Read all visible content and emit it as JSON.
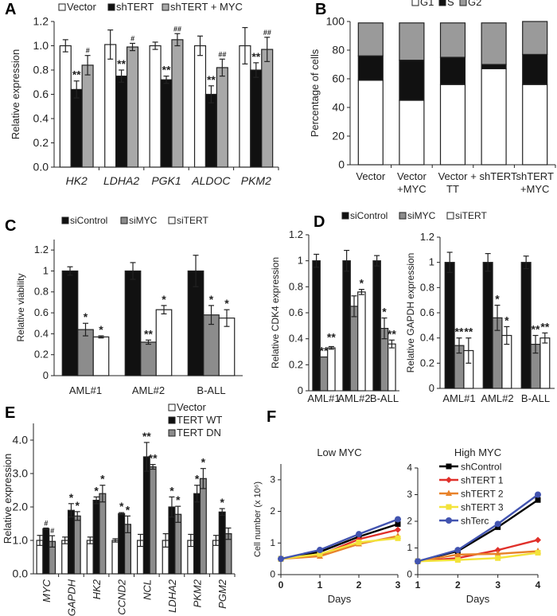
{
  "chart_data": [
    {
      "panel": "A",
      "type": "bar",
      "ylabel": "Relative expression",
      "categories": [
        "HK2",
        "LDHA2",
        "PGK1",
        "ALDOC",
        "PKM2"
      ],
      "italic_categories": true,
      "ylim": [
        0,
        1.2
      ],
      "yticks": [
        "0.0",
        "0.2",
        "0.4",
        "0.6",
        "0.8",
        "1.0",
        "1.2"
      ],
      "series": [
        {
          "name": "Vector",
          "color": "#ffffff",
          "values": [
            1.0,
            1.01,
            1.0,
            1.0,
            1.0
          ],
          "errors": [
            0.05,
            0.12,
            0.03,
            0.08,
            0.15
          ],
          "annotations": [
            "",
            "",
            "",
            "",
            ""
          ]
        },
        {
          "name": "shTERT",
          "color": "#111111",
          "values": [
            0.64,
            0.75,
            0.72,
            0.6,
            0.8
          ],
          "errors": [
            0.07,
            0.05,
            0.03,
            0.07,
            0.06
          ],
          "annotations": [
            "**",
            "**",
            "**",
            "**",
            "**"
          ]
        },
        {
          "name": "shTERT + MYC",
          "color": "#a8a8a8",
          "values": [
            0.84,
            0.99,
            1.05,
            0.82,
            0.97
          ],
          "errors": [
            0.08,
            0.03,
            0.05,
            0.07,
            0.1
          ],
          "annotations": [
            "#",
            "#",
            "##",
            "##",
            "##"
          ]
        }
      ]
    },
    {
      "panel": "B",
      "type": "stacked-bar",
      "ylabel": "Percentage of cells",
      "categories": [
        [
          "Vector"
        ],
        [
          "Vector",
          "+MYC"
        ],
        [
          "Vector",
          "TT"
        ],
        [
          "+ shTERT"
        ],
        [
          "shTERT",
          "+MYC"
        ]
      ],
      "ylim": [
        0,
        100
      ],
      "yticks": [
        "0",
        "20",
        "40",
        "60",
        "80",
        "100"
      ],
      "series": [
        {
          "name": "G1",
          "color": "#ffffff",
          "values": [
            59,
            45,
            56,
            67,
            56
          ]
        },
        {
          "name": "S",
          "color": "#111111",
          "values": [
            17,
            28,
            19,
            3,
            21
          ]
        },
        {
          "name": "G2",
          "color": "#9a9a9a",
          "values": [
            23,
            26,
            24,
            29,
            23
          ]
        }
      ]
    },
    {
      "panel": "C",
      "type": "bar",
      "ylabel": "Relative viability",
      "categories": [
        "AML#1",
        "AML#2",
        "B-ALL"
      ],
      "ylim": [
        0,
        1.3
      ],
      "yticks": [
        "0",
        "0.2",
        "0.4",
        "0.6",
        "0.8",
        "1",
        "1.2"
      ],
      "series": [
        {
          "name": "siControl",
          "color": "#111111",
          "values": [
            1,
            1,
            1
          ],
          "errors": [
            0.04,
            0.08,
            0.15
          ],
          "annotations": [
            "",
            "",
            ""
          ]
        },
        {
          "name": "siMYC",
          "color": "#8c8c8c",
          "values": [
            0.44,
            0.32,
            0.58
          ],
          "errors": [
            0.06,
            0.02,
            0.09
          ],
          "annotations": [
            "*",
            "**",
            "*"
          ]
        },
        {
          "name": "siTERT",
          "color": "#ffffff",
          "values": [
            0.37,
            0.63,
            0.55
          ],
          "errors": [
            0.01,
            0.04,
            0.08
          ],
          "annotations": [
            "*",
            "*",
            "*"
          ]
        }
      ]
    },
    {
      "panel": "D",
      "type": "bar",
      "ylabel": "Relative CDK4 expression",
      "categories": [
        "AML#1",
        "AML#2",
        "B-ALL"
      ],
      "ylim": [
        0,
        1.2
      ],
      "yticks": [
        "0",
        "0.2",
        "0.4",
        "0.6",
        "0.8",
        "1",
        "1.2"
      ],
      "series": [
        {
          "name": "siControl",
          "color": "#111111",
          "values": [
            1,
            1,
            1
          ],
          "errors": [
            0.05,
            0.08,
            0.04
          ],
          "annotations": [
            "",
            "",
            ""
          ]
        },
        {
          "name": "siMYC",
          "color": "#8c8c8c",
          "values": [
            0.26,
            0.65,
            0.48
          ],
          "errors": [
            0,
            0.08,
            0.08
          ],
          "annotations": [
            "**",
            "",
            "*"
          ]
        },
        {
          "name": "siTERT",
          "color": "#ffffff",
          "values": [
            0.33,
            0.76,
            0.36
          ],
          "errors": [
            0.01,
            0.02,
            0.03
          ],
          "annotations": [
            "**",
            "*",
            "**"
          ]
        }
      ]
    },
    {
      "panel": "",
      "type": "bar",
      "ylabel": "Relative GAPDH expression",
      "categories": [
        "AML#1",
        "AML#2",
        "B-ALL"
      ],
      "ylim": [
        0,
        1.2
      ],
      "yticks": [
        "0",
        "0.2",
        "0.4",
        "0.6",
        "0.8",
        "1",
        "1.2"
      ],
      "series": [
        {
          "name": "siControl",
          "color": "#111111",
          "values": [
            1,
            1,
            1
          ],
          "errors": [
            0.08,
            0.07,
            0.05
          ],
          "annotations": [
            "",
            "",
            ""
          ]
        },
        {
          "name": "siMYC",
          "color": "#8c8c8c",
          "values": [
            0.34,
            0.56,
            0.35
          ],
          "errors": [
            0.06,
            0.1,
            0.07
          ],
          "annotations": [
            "**",
            "*",
            "**"
          ]
        },
        {
          "name": "siTERT",
          "color": "#ffffff",
          "values": [
            0.3,
            0.42,
            0.4
          ],
          "errors": [
            0.1,
            0.07,
            0.04
          ],
          "annotations": [
            "**",
            "*",
            "**"
          ]
        }
      ]
    },
    {
      "panel": "E",
      "type": "bar",
      "ylabel": "Relative expression",
      "categories": [
        "MYC",
        "GAPDH",
        "HK2",
        "CCND2",
        "NCL",
        "LDHA2",
        "PKM2",
        "PGM2"
      ],
      "italic_categories": true,
      "ylim": [
        0,
        4.5
      ],
      "yticks": [
        "0.0",
        "1.0",
        "2.0",
        "3.0",
        "4.0"
      ],
      "series": [
        {
          "name": "Vector",
          "color": "#ffffff",
          "values": [
            1,
            1,
            1,
            1,
            1,
            1,
            1,
            1
          ],
          "errors": [
            0.15,
            0.1,
            0.1,
            0.05,
            0.18,
            0.2,
            0.18,
            0.15
          ],
          "annotations": [
            "",
            "",
            "",
            "",
            "",
            "",
            "",
            ""
          ]
        },
        {
          "name": "TERT WT",
          "color": "#111111",
          "values": [
            1.35,
            1.9,
            2.2,
            1.8,
            3.5,
            2.0,
            2.4,
            1.85
          ],
          "errors": [
            0.02,
            0.2,
            0.1,
            0.03,
            0.43,
            0.3,
            0.25,
            0.1
          ],
          "annotations": [
            "#",
            "*",
            "*",
            "*",
            "**",
            "*",
            "*",
            "*"
          ]
        },
        {
          "name": "TERT DN",
          "color": "#8c8c8c",
          "values": [
            0.97,
            1.73,
            2.4,
            1.48,
            3.2,
            1.78,
            2.85,
            1.2
          ],
          "errors": [
            0.17,
            0.13,
            0.25,
            0.25,
            0.07,
            0.24,
            0.3,
            0.17
          ],
          "annotations": [
            "#",
            "*",
            "*",
            "*",
            "**",
            "*",
            "*",
            ""
          ]
        }
      ]
    },
    {
      "panel": "F",
      "type": "line",
      "title": "Low MYC",
      "ylabel": "Cell number (x 10⁶)",
      "xlabel": "Days",
      "x": [
        0,
        1,
        2,
        3
      ],
      "xticks": [
        "0",
        "1",
        "2",
        "3"
      ],
      "ylim": [
        0,
        3.5
      ],
      "yticks": [
        "0",
        "1",
        "2",
        "3"
      ],
      "series": [
        {
          "name": "shControl",
          "color": "#000000",
          "marker": "square",
          "values": [
            0.5,
            0.72,
            1.2,
            1.6
          ]
        },
        {
          "name": "shTERT 1",
          "color": "#e0302a",
          "marker": "diamond",
          "values": [
            0.5,
            0.62,
            1.12,
            1.42
          ]
        },
        {
          "name": "shTERT 2",
          "color": "#e8822a",
          "marker": "triangle",
          "values": [
            0.5,
            0.58,
            0.97,
            1.22
          ]
        },
        {
          "name": "shTERT 3",
          "color": "#f3e33a",
          "marker": "square",
          "values": [
            0.5,
            0.65,
            1.02,
            1.15
          ]
        },
        {
          "name": "shTerc",
          "color": "#4254b0",
          "marker": "circle",
          "values": [
            0.5,
            0.78,
            1.28,
            1.75
          ]
        }
      ]
    },
    {
      "panel": "",
      "type": "line",
      "title": "High MYC",
      "ylabel": "",
      "xlabel": "Days",
      "x": [
        1,
        2,
        3,
        4
      ],
      "xticks": [
        "1",
        "2",
        "3",
        "4"
      ],
      "ylim": [
        0,
        4
      ],
      "yticks": [
        "0",
        "1",
        "2",
        "3",
        "4"
      ],
      "series": [
        {
          "name": "shControl",
          "color": "#000000",
          "marker": "square",
          "values": [
            0.5,
            0.88,
            1.78,
            2.8
          ]
        },
        {
          "name": "shTERT 1",
          "color": "#e0302a",
          "marker": "diamond",
          "values": [
            0.5,
            0.62,
            0.92,
            1.3
          ]
        },
        {
          "name": "shTERT 2",
          "color": "#e8822a",
          "marker": "triangle",
          "values": [
            0.5,
            0.75,
            0.78,
            0.88
          ]
        },
        {
          "name": "shTERT 3",
          "color": "#f3e33a",
          "marker": "square",
          "values": [
            0.5,
            0.55,
            0.62,
            0.82
          ]
        },
        {
          "name": "shTerc",
          "color": "#4254b0",
          "marker": "circle",
          "values": [
            0.5,
            0.92,
            1.9,
            3.0
          ]
        }
      ]
    }
  ]
}
